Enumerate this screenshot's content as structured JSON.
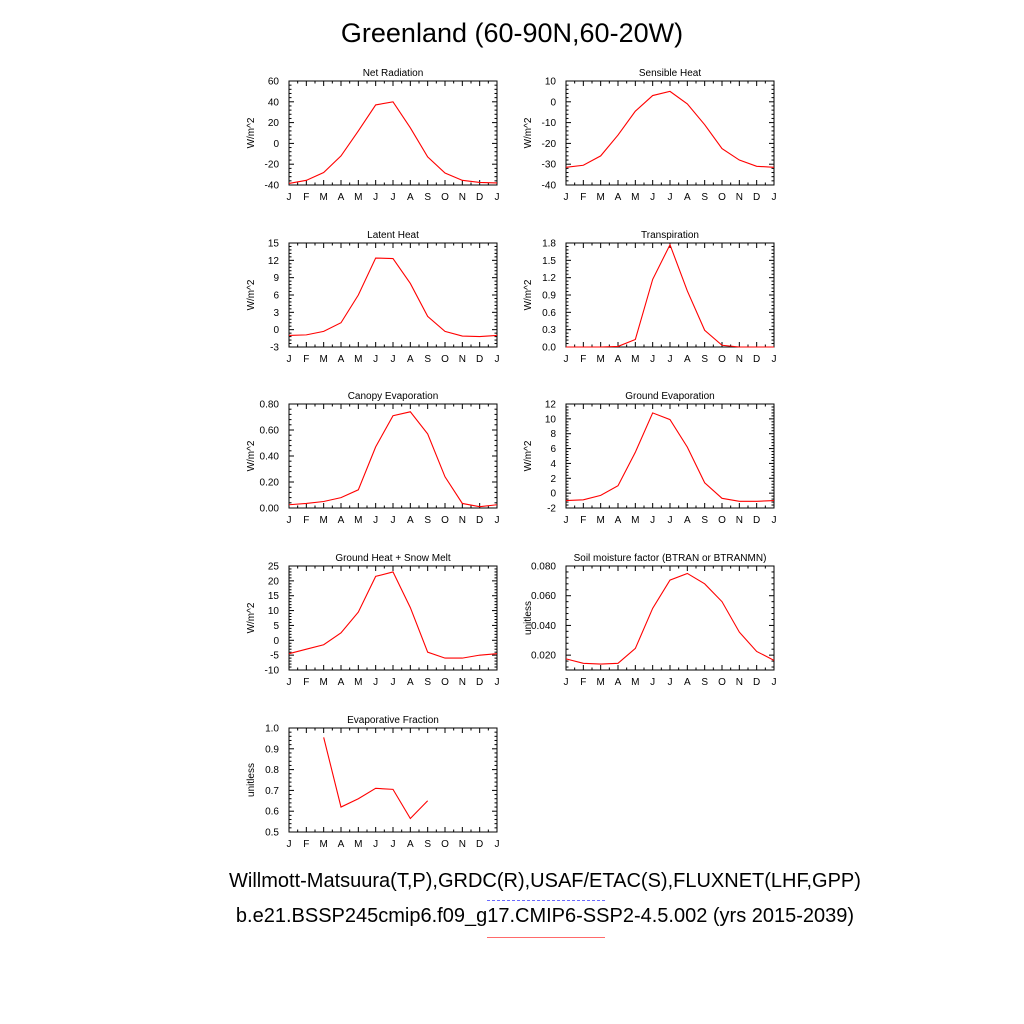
{
  "title": "Greenland (60-90N,60-20W)",
  "legend": {
    "observations": "Willmott-Matsuura(T,P),GRDC(R),USAF/ETAC(S),FLUXNET(LHF,GPP)",
    "model": "b.e21.BSSP245cmip6.f09_g17.CMIP6-SSP2-4.5.002 (yrs 2015-2039)",
    "observations_color": "#6a6aff",
    "model_color": "#ff0000"
  },
  "chart_data": [
    {
      "type": "line",
      "title": "Net Radiation",
      "ylabel": "W/m^2",
      "x": [
        "J",
        "F",
        "M",
        "A",
        "M",
        "J",
        "J",
        "A",
        "S",
        "O",
        "N",
        "D",
        "J"
      ],
      "ylim": [
        -40,
        60
      ],
      "yticks": [
        "-40",
        "-20",
        "0",
        "20",
        "40",
        "60"
      ],
      "series": [
        {
          "values": [
            -38.5,
            -35.5,
            -28,
            -12,
            12,
            37,
            40,
            15,
            -13,
            -28.5,
            -35.5,
            -37.5,
            -38
          ]
        }
      ]
    },
    {
      "type": "line",
      "title": "Sensible Heat",
      "ylabel": "W/m^2",
      "x": [
        "J",
        "F",
        "M",
        "A",
        "M",
        "J",
        "J",
        "A",
        "S",
        "O",
        "N",
        "D",
        "J"
      ],
      "ylim": [
        -40,
        10
      ],
      "yticks": [
        "-40",
        "-30",
        "-20",
        "-10",
        "0",
        "10"
      ],
      "series": [
        {
          "values": [
            -31.5,
            -30.5,
            -26,
            -16,
            -4.5,
            3,
            5,
            -1,
            -11,
            -22.5,
            -28,
            -31,
            -31.5
          ]
        }
      ]
    },
    {
      "type": "line",
      "title": "Latent Heat",
      "ylabel": "W/m^2",
      "x": [
        "J",
        "F",
        "M",
        "A",
        "M",
        "J",
        "J",
        "A",
        "S",
        "O",
        "N",
        "D",
        "J"
      ],
      "ylim": [
        -3,
        15
      ],
      "yticks": [
        "-3",
        "0",
        "3",
        "6",
        "9",
        "12",
        "15"
      ],
      "series": [
        {
          "values": [
            -1,
            -0.9,
            -0.3,
            1.2,
            6,
            12.4,
            12.3,
            8,
            2.3,
            -0.3,
            -1.1,
            -1.2,
            -1
          ]
        }
      ]
    },
    {
      "type": "line",
      "title": "Transpiration",
      "ylabel": "W/m^2",
      "x": [
        "J",
        "F",
        "M",
        "A",
        "M",
        "J",
        "J",
        "A",
        "S",
        "O",
        "N",
        "D",
        "J"
      ],
      "ylim": [
        0,
        1.8
      ],
      "yticks": [
        "0.0",
        "0.3",
        "0.6",
        "0.9",
        "1.2",
        "1.5",
        "1.8"
      ],
      "series": [
        {
          "values": [
            0.0,
            0.0,
            0.0,
            0.01,
            0.13,
            1.17,
            1.77,
            0.97,
            0.29,
            0.03,
            0.0,
            0.0,
            0.0
          ]
        }
      ]
    },
    {
      "type": "line",
      "title": "Canopy Evaporation",
      "ylabel": "W/m^2",
      "x": [
        "J",
        "F",
        "M",
        "A",
        "M",
        "J",
        "J",
        "A",
        "S",
        "O",
        "N",
        "D",
        "J"
      ],
      "ylim": [
        0,
        0.8
      ],
      "yticks": [
        "0.00",
        "0.20",
        "0.40",
        "0.60",
        "0.80"
      ],
      "series": [
        {
          "values": [
            0.025,
            0.035,
            0.05,
            0.08,
            0.14,
            0.47,
            0.71,
            0.74,
            0.57,
            0.24,
            0.035,
            0.01,
            0.025
          ]
        }
      ]
    },
    {
      "type": "line",
      "title": "Ground Evaporation",
      "ylabel": "W/m^2",
      "x": [
        "J",
        "F",
        "M",
        "A",
        "M",
        "J",
        "J",
        "A",
        "S",
        "O",
        "N",
        "D",
        "J"
      ],
      "ylim": [
        -2,
        12
      ],
      "yticks": [
        "-2",
        "0",
        "2",
        "4",
        "6",
        "8",
        "10",
        "12"
      ],
      "series": [
        {
          "values": [
            -1,
            -0.9,
            -0.3,
            1,
            5.5,
            10.8,
            9.9,
            6.2,
            1.4,
            -0.7,
            -1.1,
            -1.1,
            -1
          ]
        }
      ]
    },
    {
      "type": "line",
      "title": "Ground Heat + Snow Melt",
      "ylabel": "W/m^2",
      "x": [
        "J",
        "F",
        "M",
        "A",
        "M",
        "J",
        "J",
        "A",
        "S",
        "O",
        "N",
        "D",
        "J"
      ],
      "ylim": [
        -10,
        25
      ],
      "yticks": [
        "-10",
        "-5",
        "0",
        "5",
        "10",
        "15",
        "20",
        "25"
      ],
      "series": [
        {
          "values": [
            -4.5,
            -3,
            -1.5,
            2.5,
            9.5,
            21.5,
            23,
            11,
            -4,
            -6,
            -6,
            -5,
            -4.5
          ]
        }
      ]
    },
    {
      "type": "line",
      "title": "Soil moisture factor (BTRAN or BTRANMN)",
      "ylabel": "unitless",
      "x": [
        "J",
        "F",
        "M",
        "A",
        "M",
        "J",
        "J",
        "A",
        "S",
        "O",
        "N",
        "D",
        "J"
      ],
      "ylim": [
        0.01,
        0.08
      ],
      "yticks": [
        "0.020",
        "0.040",
        "0.060",
        "0.080"
      ],
      "series": [
        {
          "values": [
            0.0175,
            0.0145,
            0.014,
            0.0145,
            0.0245,
            0.0515,
            0.0705,
            0.075,
            0.068,
            0.056,
            0.0355,
            0.0225,
            0.0165
          ]
        }
      ]
    },
    {
      "type": "line",
      "title": "Evaporative Fraction",
      "ylabel": "unitless",
      "x": [
        "J",
        "F",
        "M",
        "A",
        "M",
        "J",
        "J",
        "A",
        "S",
        "O",
        "N",
        "D",
        "J"
      ],
      "ylim": [
        0.5,
        1.0
      ],
      "yticks": [
        "0.5",
        "0.6",
        "0.7",
        "0.8",
        "0.9",
        "1.0"
      ],
      "series": [
        {
          "values": [
            null,
            null,
            0.955,
            0.62,
            0.66,
            0.71,
            0.705,
            0.565,
            0.65,
            null,
            null,
            null,
            null
          ]
        }
      ]
    }
  ]
}
